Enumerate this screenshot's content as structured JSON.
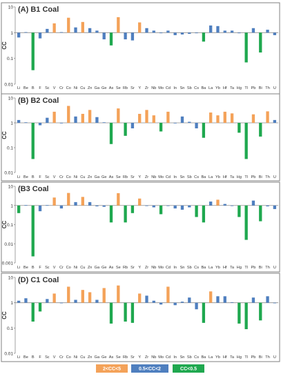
{
  "chart_data": [
    {
      "type": "bar",
      "title": "(A) B1 Coal",
      "ylabel": "CC",
      "yscale": "log",
      "ylim": [
        0.01,
        10
      ],
      "yticks": [
        "0.01",
        "0.1",
        "1",
        "10"
      ],
      "categories": [
        "Li",
        "Be",
        "B",
        "F",
        "Sc",
        "V",
        "Cr",
        "Co",
        "Ni",
        "Cu",
        "Zn",
        "Ga",
        "Ge",
        "As",
        "Se",
        "Rb",
        "Sr",
        "Y",
        "Zr",
        "Nb",
        "Mo",
        "Cd",
        "In",
        "Sn",
        "Sb",
        "Cs",
        "Ba",
        "La",
        "Yb",
        "Hf",
        "Ta",
        "Hg",
        "Tl",
        "Pb",
        "Bi",
        "Th",
        "U"
      ],
      "values": [
        0.65,
        1.05,
        0.035,
        0.6,
        1.4,
        2.3,
        1.05,
        3.8,
        1.6,
        2.6,
        1.5,
        1.2,
        0.55,
        0.32,
        4.0,
        0.55,
        0.5,
        2.5,
        1.5,
        1.2,
        1.0,
        1.2,
        0.8,
        0.85,
        0.9,
        1.0,
        0.45,
        1.9,
        1.8,
        1.2,
        1.2,
        0.95,
        0.07,
        1.5,
        0.17,
        1.3,
        0.8
      ],
      "show_xticklabels": true
    },
    {
      "type": "bar",
      "title": "(B) B2 Coal",
      "ylabel": "CC",
      "yscale": "log",
      "ylim": [
        0.01,
        10
      ],
      "yticks": [
        "0.01",
        "0.1",
        "1",
        "10"
      ],
      "categories": [
        "Li",
        "Be",
        "B",
        "F",
        "Sc",
        "V",
        "Cr",
        "Co",
        "Ni",
        "Cu",
        "Zn",
        "Ga",
        "Ge",
        "As",
        "Se",
        "Rb",
        "Sr",
        "Y",
        "Zr",
        "Nb",
        "Mo",
        "Cd",
        "In",
        "Sn",
        "Sb",
        "Cs",
        "Ba",
        "La",
        "Yb",
        "Hf",
        "Ta",
        "Hg",
        "Tl",
        "Pb",
        "Bi",
        "Th",
        "U"
      ],
      "values": [
        1.3,
        1.05,
        0.035,
        0.8,
        1.6,
        2.8,
        1.0,
        4.8,
        1.8,
        2.3,
        3.3,
        1.7,
        1.05,
        0.14,
        3.8,
        0.3,
        0.6,
        2.3,
        3.3,
        2.0,
        0.45,
        2.8,
        1.0,
        1.8,
        1.1,
        0.6,
        0.25,
        2.6,
        2.0,
        2.8,
        2.4,
        0.4,
        0.035,
        2.2,
        0.28,
        2.9,
        1.3
      ],
      "show_xticklabels": true
    },
    {
      "type": "bar",
      "title": "(B3 Coal",
      "ylabel": "CC",
      "yscale": "log",
      "ylim": [
        0.001,
        10
      ],
      "yticks": [
        "0.001",
        "0.01",
        "0.1",
        "1",
        "10"
      ],
      "categories": [
        "Li",
        "Be",
        "B",
        "F",
        "Sc",
        "V",
        "Cr",
        "Co",
        "Ni",
        "Cu",
        "Zn",
        "Ga",
        "Ge",
        "As",
        "Se",
        "Rb",
        "Sr",
        "Y",
        "Zr",
        "Nb",
        "Mo",
        "Cd",
        "In",
        "Sn",
        "Sb",
        "Cs",
        "Ba",
        "La",
        "Yb",
        "Hf",
        "Ta",
        "Hg",
        "Tl",
        "Pb",
        "Bi",
        "Th",
        "U"
      ],
      "values": [
        0.4,
        1.05,
        0.0022,
        0.5,
        1.05,
        2.6,
        0.7,
        4.5,
        1.5,
        2.8,
        1.5,
        0.9,
        0.85,
        0.13,
        4.4,
        0.13,
        0.4,
        2.3,
        1.0,
        0.8,
        0.35,
        1.0,
        0.7,
        0.6,
        0.8,
        0.25,
        0.13,
        1.6,
        2.0,
        1.2,
        0.95,
        0.25,
        0.016,
        1.8,
        0.15,
        0.9,
        0.65
      ],
      "show_xticklabels": true
    },
    {
      "type": "bar",
      "title": "(D) C1 Coal",
      "ylabel": "CC",
      "yscale": "log",
      "ylim": [
        0.01,
        10
      ],
      "yticks": [
        "0.01",
        "0.1",
        "1",
        "10"
      ],
      "categories": [
        "Li",
        "Be",
        "B",
        "F",
        "Sc",
        "V",
        "Cr",
        "Co",
        "Ni",
        "Cu",
        "Zn",
        "Ga",
        "Ge",
        "As",
        "Se",
        "Rb",
        "Sr",
        "Y",
        "Zr",
        "Nb",
        "Mo",
        "Cd",
        "In",
        "Sn",
        "Sb",
        "Cs",
        "Ba",
        "La",
        "Yb",
        "Hf",
        "Ta",
        "Hg",
        "Tl",
        "Pb",
        "Bi",
        "Th",
        "U"
      ],
      "values": [
        1.2,
        1.5,
        0.18,
        0.45,
        1.4,
        2.3,
        1.0,
        4.3,
        1.3,
        3.2,
        2.6,
        1.3,
        3.8,
        0.15,
        4.8,
        0.18,
        0.16,
        2.3,
        1.9,
        1.2,
        0.85,
        4.3,
        0.8,
        1.1,
        1.6,
        0.55,
        0.16,
        2.8,
        1.8,
        1.8,
        1.05,
        0.15,
        0.09,
        1.6,
        0.2,
        1.8,
        1.0
      ],
      "show_xticklabels": true
    }
  ],
  "legend": {
    "placement": "bottom-center",
    "items": [
      {
        "label": "2<CC<5",
        "color": "#f4a259"
      },
      {
        "label": "0.5<CC<2",
        "color": "#4f7fbf"
      },
      {
        "label": "CC<0.5",
        "color": "#1fa84f"
      }
    ]
  },
  "colors": {
    "high": "#f4a259",
    "normal": "#4f7fbf",
    "low": "#1fa84f",
    "axis": "#8a8a8a",
    "panel_border": "#7f7f7f",
    "text": "#333333"
  }
}
